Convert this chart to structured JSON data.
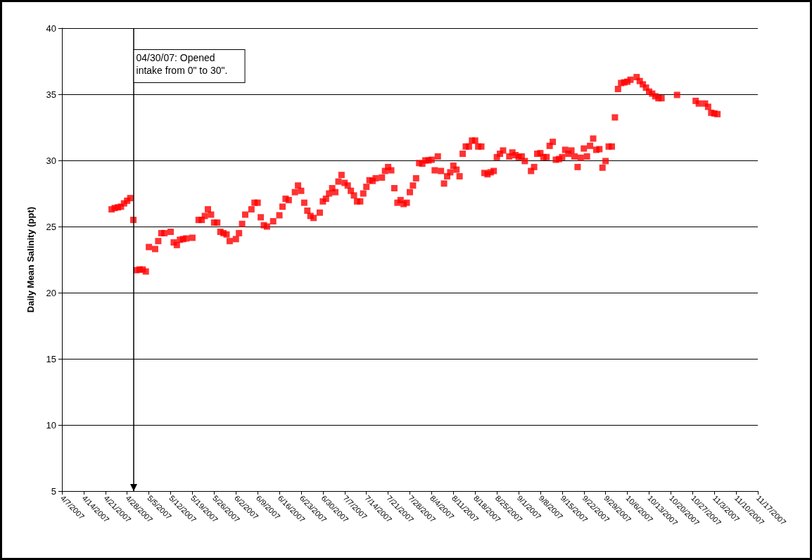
{
  "chart_data": {
    "type": "scatter",
    "ylabel": "Daily Mean Salinity (ppt)",
    "marker": "square",
    "grid": "y",
    "xlim": [
      "2007-04-07",
      "2007-11-17"
    ],
    "xticks": [
      {
        "value": "2007-04-07",
        "label": "4/7/2007"
      },
      {
        "value": "2007-04-14",
        "label": "4/14/2007"
      },
      {
        "value": "2007-04-21",
        "label": "4/21/2007"
      },
      {
        "value": "2007-04-28",
        "label": "4/28/2007"
      },
      {
        "value": "2007-05-05",
        "label": "5/5/2007"
      },
      {
        "value": "2007-05-12",
        "label": "5/12/2007"
      },
      {
        "value": "2007-05-19",
        "label": "5/19/2007"
      },
      {
        "value": "2007-05-26",
        "label": "5/26/2007"
      },
      {
        "value": "2007-06-02",
        "label": "6/2/2007"
      },
      {
        "value": "2007-06-09",
        "label": "6/9/2007"
      },
      {
        "value": "2007-06-16",
        "label": "6/16/2007"
      },
      {
        "value": "2007-06-23",
        "label": "6/23/2007"
      },
      {
        "value": "2007-06-30",
        "label": "6/30/2007"
      },
      {
        "value": "2007-07-07",
        "label": "7/7/2007"
      },
      {
        "value": "2007-07-14",
        "label": "7/14/2007"
      },
      {
        "value": "2007-07-21",
        "label": "7/21/2007"
      },
      {
        "value": "2007-07-28",
        "label": "7/28/2007"
      },
      {
        "value": "2007-08-04",
        "label": "8/4/2007"
      },
      {
        "value": "2007-08-11",
        "label": "8/11/2007"
      },
      {
        "value": "2007-08-18",
        "label": "8/18/2007"
      },
      {
        "value": "2007-08-25",
        "label": "8/25/2007"
      },
      {
        "value": "2007-09-01",
        "label": "9/1/2007"
      },
      {
        "value": "2007-09-08",
        "label": "9/8/2007"
      },
      {
        "value": "2007-09-15",
        "label": "9/15/2007"
      },
      {
        "value": "2007-09-22",
        "label": "9/22/2007"
      },
      {
        "value": "2007-09-29",
        "label": "9/29/2007"
      },
      {
        "value": "2007-10-06",
        "label": "10/6/2007"
      },
      {
        "value": "2007-10-13",
        "label": "10/13/2007"
      },
      {
        "value": "2007-10-20",
        "label": "10/20/2007"
      },
      {
        "value": "2007-10-27",
        "label": "10/27/2007"
      },
      {
        "value": "2007-11-03",
        "label": "11/3/2007"
      },
      {
        "value": "2007-11-10",
        "label": "11/10/2007"
      },
      {
        "value": "2007-11-17",
        "label": "11/17/2007"
      }
    ],
    "ylim": [
      5,
      40
    ],
    "yticks": [
      5,
      10,
      15,
      20,
      25,
      30,
      35,
      40
    ],
    "ref_lines": [
      {
        "axis": "x",
        "value": "2007-04-30",
        "label": "04/30/07: Opened intake from 0\" to 30\".",
        "color": "#000000"
      }
    ],
    "series": [
      {
        "color": "#ff0000",
        "x": [
          "2007-04-23",
          "2007-04-24",
          "2007-04-25",
          "2007-04-26",
          "2007-04-27",
          "2007-04-28",
          "2007-04-29",
          "2007-04-30",
          "2007-05-01",
          "2007-05-02",
          "2007-05-03",
          "2007-05-04",
          "2007-05-05",
          "2007-05-07",
          "2007-05-08",
          "2007-05-09",
          "2007-05-10",
          "2007-05-12",
          "2007-05-13",
          "2007-05-14",
          "2007-05-15",
          "2007-05-16",
          "2007-05-17",
          "2007-05-19",
          "2007-05-21",
          "2007-05-22",
          "2007-05-23",
          "2007-05-24",
          "2007-05-25",
          "2007-05-26",
          "2007-05-27",
          "2007-05-28",
          "2007-05-29",
          "2007-05-30",
          "2007-05-31",
          "2007-06-02",
          "2007-06-03",
          "2007-06-04",
          "2007-06-05",
          "2007-06-07",
          "2007-06-08",
          "2007-06-09",
          "2007-06-10",
          "2007-06-11",
          "2007-06-12",
          "2007-06-14",
          "2007-06-16",
          "2007-06-17",
          "2007-06-18",
          "2007-06-19",
          "2007-06-21",
          "2007-06-22",
          "2007-06-23",
          "2007-06-24",
          "2007-06-25",
          "2007-06-26",
          "2007-06-27",
          "2007-06-29",
          "2007-06-30",
          "2007-07-01",
          "2007-07-02",
          "2007-07-03",
          "2007-07-04",
          "2007-07-05",
          "2007-07-06",
          "2007-07-07",
          "2007-07-08",
          "2007-07-09",
          "2007-07-10",
          "2007-07-11",
          "2007-07-12",
          "2007-07-13",
          "2007-07-14",
          "2007-07-15",
          "2007-07-16",
          "2007-07-17",
          "2007-07-19",
          "2007-07-20",
          "2007-07-21",
          "2007-07-22",
          "2007-07-23",
          "2007-07-24",
          "2007-07-25",
          "2007-07-26",
          "2007-07-27",
          "2007-07-28",
          "2007-07-29",
          "2007-07-30",
          "2007-07-31",
          "2007-08-01",
          "2007-08-02",
          "2007-08-03",
          "2007-08-04",
          "2007-08-05",
          "2007-08-06",
          "2007-08-07",
          "2007-08-08",
          "2007-08-09",
          "2007-08-10",
          "2007-08-11",
          "2007-08-12",
          "2007-08-13",
          "2007-08-14",
          "2007-08-15",
          "2007-08-16",
          "2007-08-17",
          "2007-08-18",
          "2007-08-19",
          "2007-08-20",
          "2007-08-21",
          "2007-08-22",
          "2007-08-23",
          "2007-08-24",
          "2007-08-25",
          "2007-08-26",
          "2007-08-27",
          "2007-08-29",
          "2007-08-30",
          "2007-08-31",
          "2007-09-01",
          "2007-09-02",
          "2007-09-03",
          "2007-09-05",
          "2007-09-06",
          "2007-09-07",
          "2007-09-08",
          "2007-09-09",
          "2007-09-10",
          "2007-09-11",
          "2007-09-12",
          "2007-09-13",
          "2007-09-14",
          "2007-09-15",
          "2007-09-16",
          "2007-09-17",
          "2007-09-18",
          "2007-09-19",
          "2007-09-20",
          "2007-09-21",
          "2007-09-22",
          "2007-09-23",
          "2007-09-24",
          "2007-09-25",
          "2007-09-26",
          "2007-09-27",
          "2007-09-28",
          "2007-09-29",
          "2007-09-30",
          "2007-10-01",
          "2007-10-02",
          "2007-10-03",
          "2007-10-04",
          "2007-10-05",
          "2007-10-06",
          "2007-10-07",
          "2007-10-09",
          "2007-10-10",
          "2007-10-11",
          "2007-10-12",
          "2007-10-13",
          "2007-10-14",
          "2007-10-15",
          "2007-10-16",
          "2007-10-17",
          "2007-10-22",
          "2007-10-28",
          "2007-10-29",
          "2007-10-31",
          "2007-11-01",
          "2007-11-02",
          "2007-11-03",
          "2007-11-04"
        ],
        "values": [
          26.3,
          26.4,
          26.45,
          26.5,
          26.75,
          26.95,
          27.15,
          25.5,
          21.7,
          21.75,
          21.75,
          21.6,
          23.45,
          23.3,
          23.9,
          24.5,
          24.5,
          24.6,
          23.8,
          23.6,
          24.0,
          24.05,
          24.1,
          24.15,
          25.5,
          25.5,
          25.8,
          26.3,
          25.9,
          25.3,
          25.3,
          24.6,
          24.5,
          24.4,
          23.9,
          24.05,
          24.5,
          25.2,
          25.9,
          26.3,
          26.8,
          26.8,
          25.7,
          25.1,
          25.0,
          25.4,
          25.85,
          26.5,
          27.1,
          27.0,
          27.6,
          28.1,
          27.7,
          26.8,
          26.2,
          25.8,
          25.65,
          26.05,
          26.9,
          27.1,
          27.5,
          27.9,
          27.6,
          28.4,
          28.9,
          28.3,
          28.1,
          27.7,
          27.35,
          26.9,
          26.9,
          27.5,
          28.0,
          28.5,
          28.45,
          28.65,
          28.7,
          29.2,
          29.5,
          29.25,
          27.9,
          26.8,
          27.0,
          26.7,
          26.8,
          27.6,
          28.1,
          28.65,
          29.8,
          29.75,
          30.0,
          30.0,
          30.05,
          29.25,
          30.3,
          29.2,
          28.25,
          28.8,
          29.1,
          29.6,
          29.3,
          28.8,
          30.5,
          31.05,
          31.05,
          31.5,
          31.5,
          31.05,
          31.05,
          29.05,
          28.95,
          29.1,
          29.2,
          30.25,
          30.5,
          30.75,
          30.3,
          30.6,
          30.4,
          30.25,
          30.3,
          29.95,
          29.2,
          29.5,
          30.5,
          30.55,
          30.25,
          30.25,
          31.1,
          31.4,
          30.05,
          30.1,
          30.25,
          30.8,
          30.5,
          30.75,
          30.3,
          29.5,
          30.2,
          30.9,
          30.3,
          31.1,
          31.65,
          30.8,
          30.85,
          29.45,
          29.95,
          31.05,
          31.05,
          33.25,
          35.4,
          35.85,
          35.9,
          35.95,
          36.1,
          36.3,
          36.0,
          35.75,
          35.5,
          35.2,
          35.05,
          34.85,
          34.7,
          34.7,
          34.95,
          34.5,
          34.3,
          34.3,
          34.05,
          33.6,
          33.55,
          33.5
        ]
      }
    ]
  }
}
